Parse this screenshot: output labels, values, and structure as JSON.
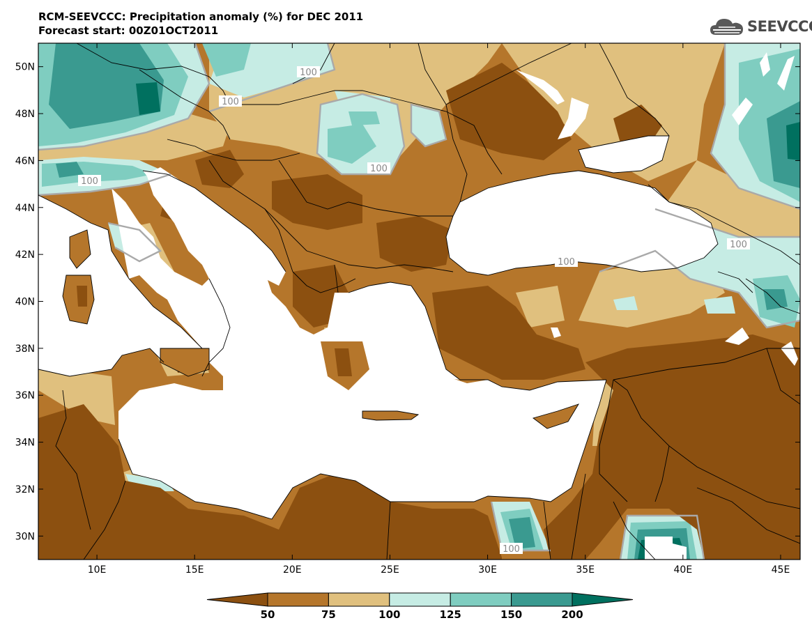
{
  "header": {
    "title": "RCM-SEEVCCC: Precipitation anomaly (%) for DEC 2011",
    "subtitle": "Forecast start: 00Z01OCT2011"
  },
  "logo": {
    "text": "SEEVCCC",
    "icon": "cloud-icon"
  },
  "map": {
    "lat_range": [
      29,
      51
    ],
    "lon_range": [
      7,
      46
    ],
    "lat_ticks": [
      "50N",
      "48N",
      "46N",
      "44N",
      "42N",
      "40N",
      "38N",
      "36N",
      "34N",
      "32N",
      "30N"
    ],
    "lon_ticks": [
      "10E",
      "15E",
      "20E",
      "25E",
      "30E",
      "35E",
      "40E",
      "45E"
    ],
    "contour_labels": [
      "100",
      "100",
      "100",
      "100",
      "100",
      "100",
      "100"
    ]
  },
  "colorbar": {
    "levels": [
      "50",
      "75",
      "100",
      "125",
      "150",
      "200"
    ],
    "colors": [
      "#8c5010",
      "#b5762b",
      "#e0c07e",
      "#c6ece4",
      "#7fcdc0",
      "#3a9a90",
      "#00705f"
    ]
  },
  "palette": {
    "sea": "#ffffff",
    "dark_brown": "#8c5010",
    "brown": "#b5762b",
    "tan": "#e0c07e",
    "light_teal": "#c6ece4",
    "teal": "#7fcdc0",
    "dark_teal": "#3a9a90",
    "deepest_teal": "#00705f",
    "contour_100": "#a9a9a9"
  }
}
